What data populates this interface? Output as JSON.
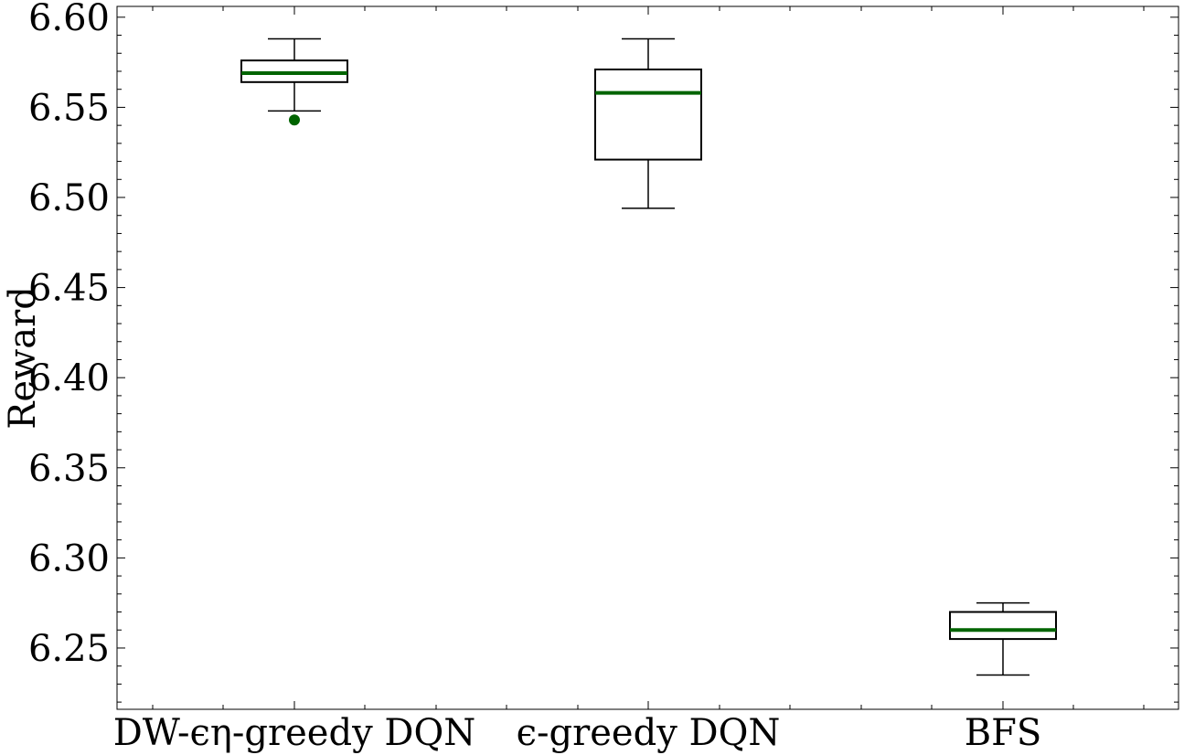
{
  "chart_data": {
    "type": "box",
    "ylabel": "Reward",
    "xlabel": "",
    "ylim": [
      6.216,
      6.606
    ],
    "yticks": [
      "6.25",
      "6.30",
      "6.35",
      "6.40",
      "6.45",
      "6.50",
      "6.55",
      "6.60"
    ],
    "categories": [
      "DW-ϵη-greedy DQN",
      "ϵ-greedy DQN",
      "BFS"
    ],
    "boxes": [
      {
        "category": "DW-ϵη-greedy DQN",
        "whisker_low": 6.548,
        "q1": 6.564,
        "median": 6.569,
        "q3": 6.576,
        "whisker_high": 6.588,
        "outliers": [
          6.543
        ]
      },
      {
        "category": "ϵ-greedy DQN",
        "whisker_low": 6.494,
        "q1": 6.521,
        "median": 6.558,
        "q3": 6.571,
        "whisker_high": 6.588,
        "outliers": []
      },
      {
        "category": "BFS",
        "whisker_low": 6.235,
        "q1": 6.255,
        "median": 6.26,
        "q3": 6.27,
        "whisker_high": 6.275,
        "outliers": []
      }
    ],
    "grid": false,
    "legend": "none",
    "colors": {
      "box": "#000000",
      "median": "#006400",
      "outlier": "#006400",
      "axes": "#000000"
    }
  }
}
